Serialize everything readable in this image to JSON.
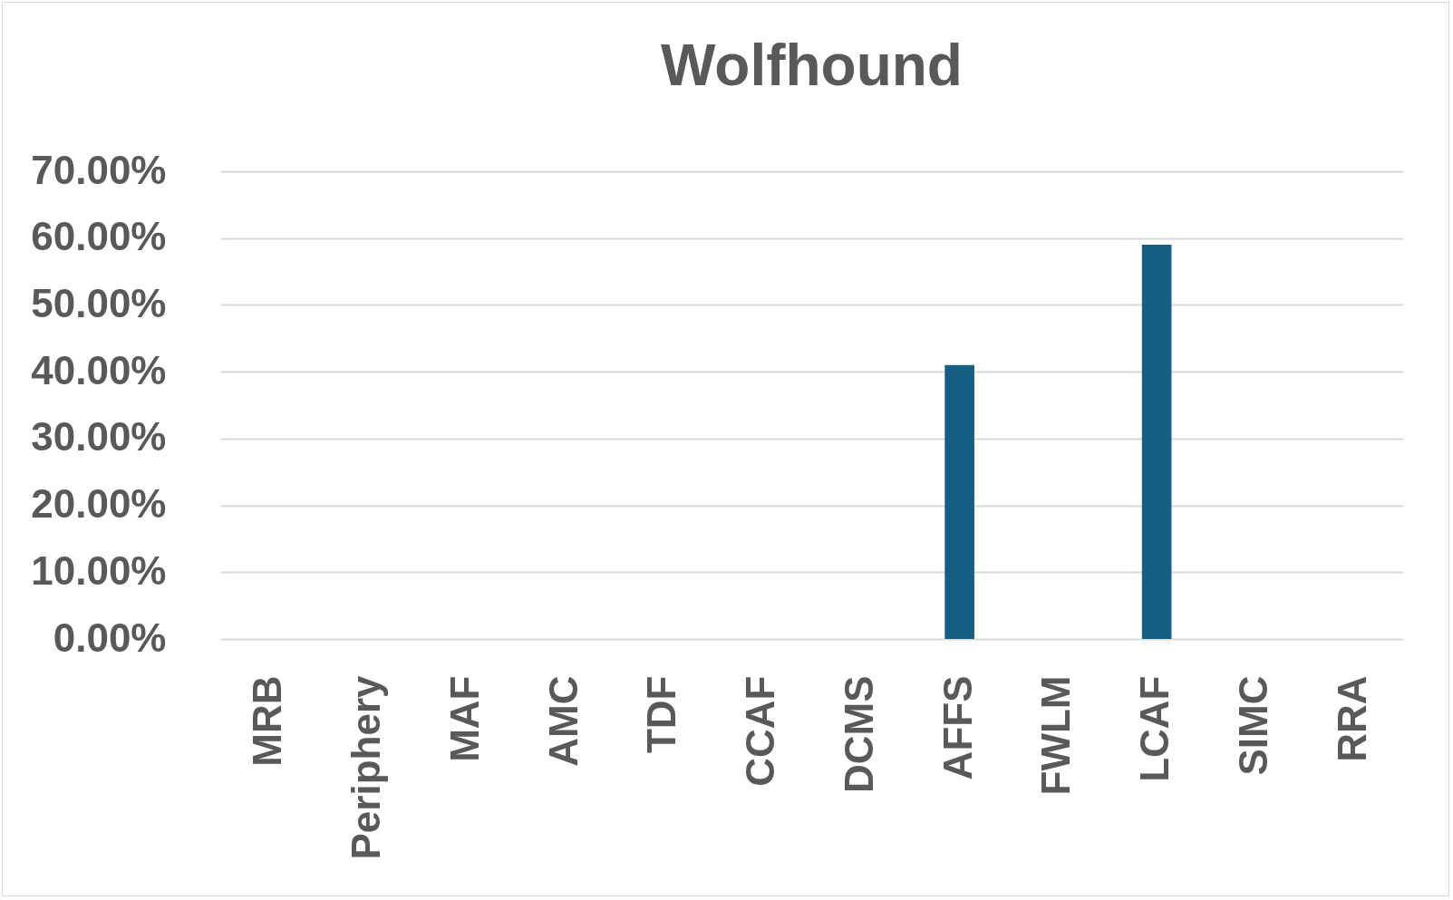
{
  "chart_data": {
    "type": "bar",
    "title": "Wolfhound",
    "categories": [
      "MRB",
      "Periphery",
      "MAF",
      "AMC",
      "TDF",
      "CCAF",
      "DCMS",
      "AFFS",
      "FWLM",
      "LCAF",
      "SIMC",
      "RRA"
    ],
    "values": [
      0,
      0,
      0,
      0,
      0,
      0,
      0,
      41,
      0,
      59,
      0,
      0
    ],
    "color": "#156082",
    "ylim": [
      0,
      70
    ],
    "yticks": [
      {
        "value": 0,
        "label": "0.00%"
      },
      {
        "value": 10,
        "label": "10.00%"
      },
      {
        "value": 20,
        "label": "20.00%"
      },
      {
        "value": 30,
        "label": "30.00%"
      },
      {
        "value": 40,
        "label": "40.00%"
      },
      {
        "value": 50,
        "label": "50.00%"
      },
      {
        "value": 60,
        "label": "60.00%"
      },
      {
        "value": 70,
        "label": "70.00%"
      }
    ],
    "grid": "y"
  }
}
